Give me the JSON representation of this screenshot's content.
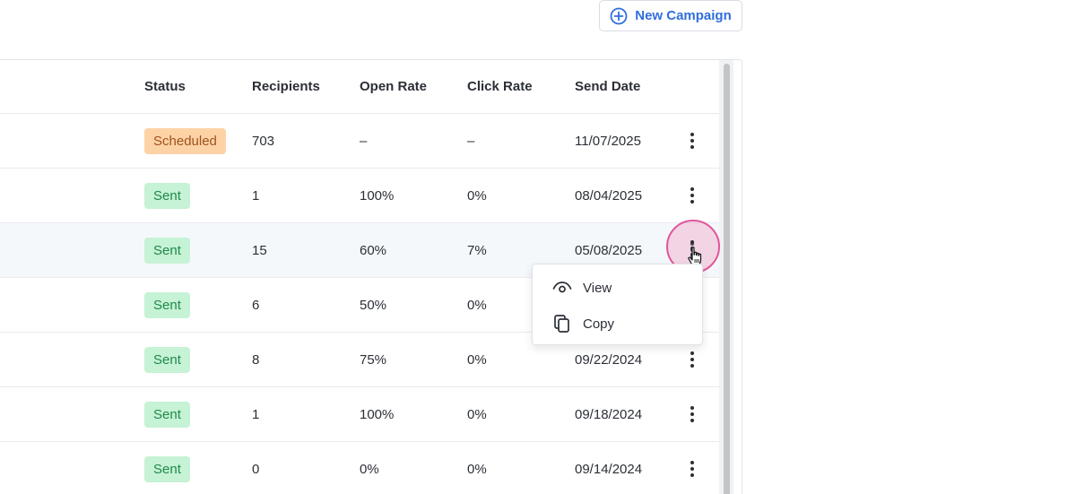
{
  "toolbar": {
    "new_campaign_label": "New Campaign"
  },
  "table": {
    "columns": [
      "Status",
      "Recipients",
      "Open Rate",
      "Click Rate",
      "Send Date"
    ],
    "rows": [
      {
        "status": "Scheduled",
        "status_type": "scheduled",
        "recipients": "703",
        "open_rate": "–",
        "click_rate": "–",
        "send_date": "11/07/2025"
      },
      {
        "status": "Sent",
        "status_type": "sent",
        "recipients": "1",
        "open_rate": "100%",
        "click_rate": "0%",
        "send_date": "08/04/2025"
      },
      {
        "status": "Sent",
        "status_type": "sent",
        "recipients": "15",
        "open_rate": "60%",
        "click_rate": "7%",
        "send_date": "05/08/2025"
      },
      {
        "status": "Sent",
        "status_type": "sent",
        "recipients": "6",
        "open_rate": "50%",
        "click_rate": "0%",
        "send_date": ""
      },
      {
        "status": "Sent",
        "status_type": "sent",
        "recipients": "8",
        "open_rate": "75%",
        "click_rate": "0%",
        "send_date": "09/22/2024"
      },
      {
        "status": "Sent",
        "status_type": "sent",
        "recipients": "1",
        "open_rate": "100%",
        "click_rate": "0%",
        "send_date": "09/18/2024"
      },
      {
        "status": "Sent",
        "status_type": "sent",
        "recipients": "0",
        "open_rate": "0%",
        "click_rate": "0%",
        "send_date": "09/14/2024"
      }
    ]
  },
  "row_menu": {
    "items": [
      {
        "label": "View",
        "icon": "eye-icon"
      },
      {
        "label": "Copy",
        "icon": "copy-icon"
      }
    ]
  },
  "colors": {
    "accent": "#2f6fdc",
    "sent_bg": "#c6f2d5",
    "sent_text": "#1f8a4c",
    "scheduled_bg": "#fdd3a6",
    "scheduled_text": "#a0521c",
    "click_highlight": "#e0569a"
  }
}
